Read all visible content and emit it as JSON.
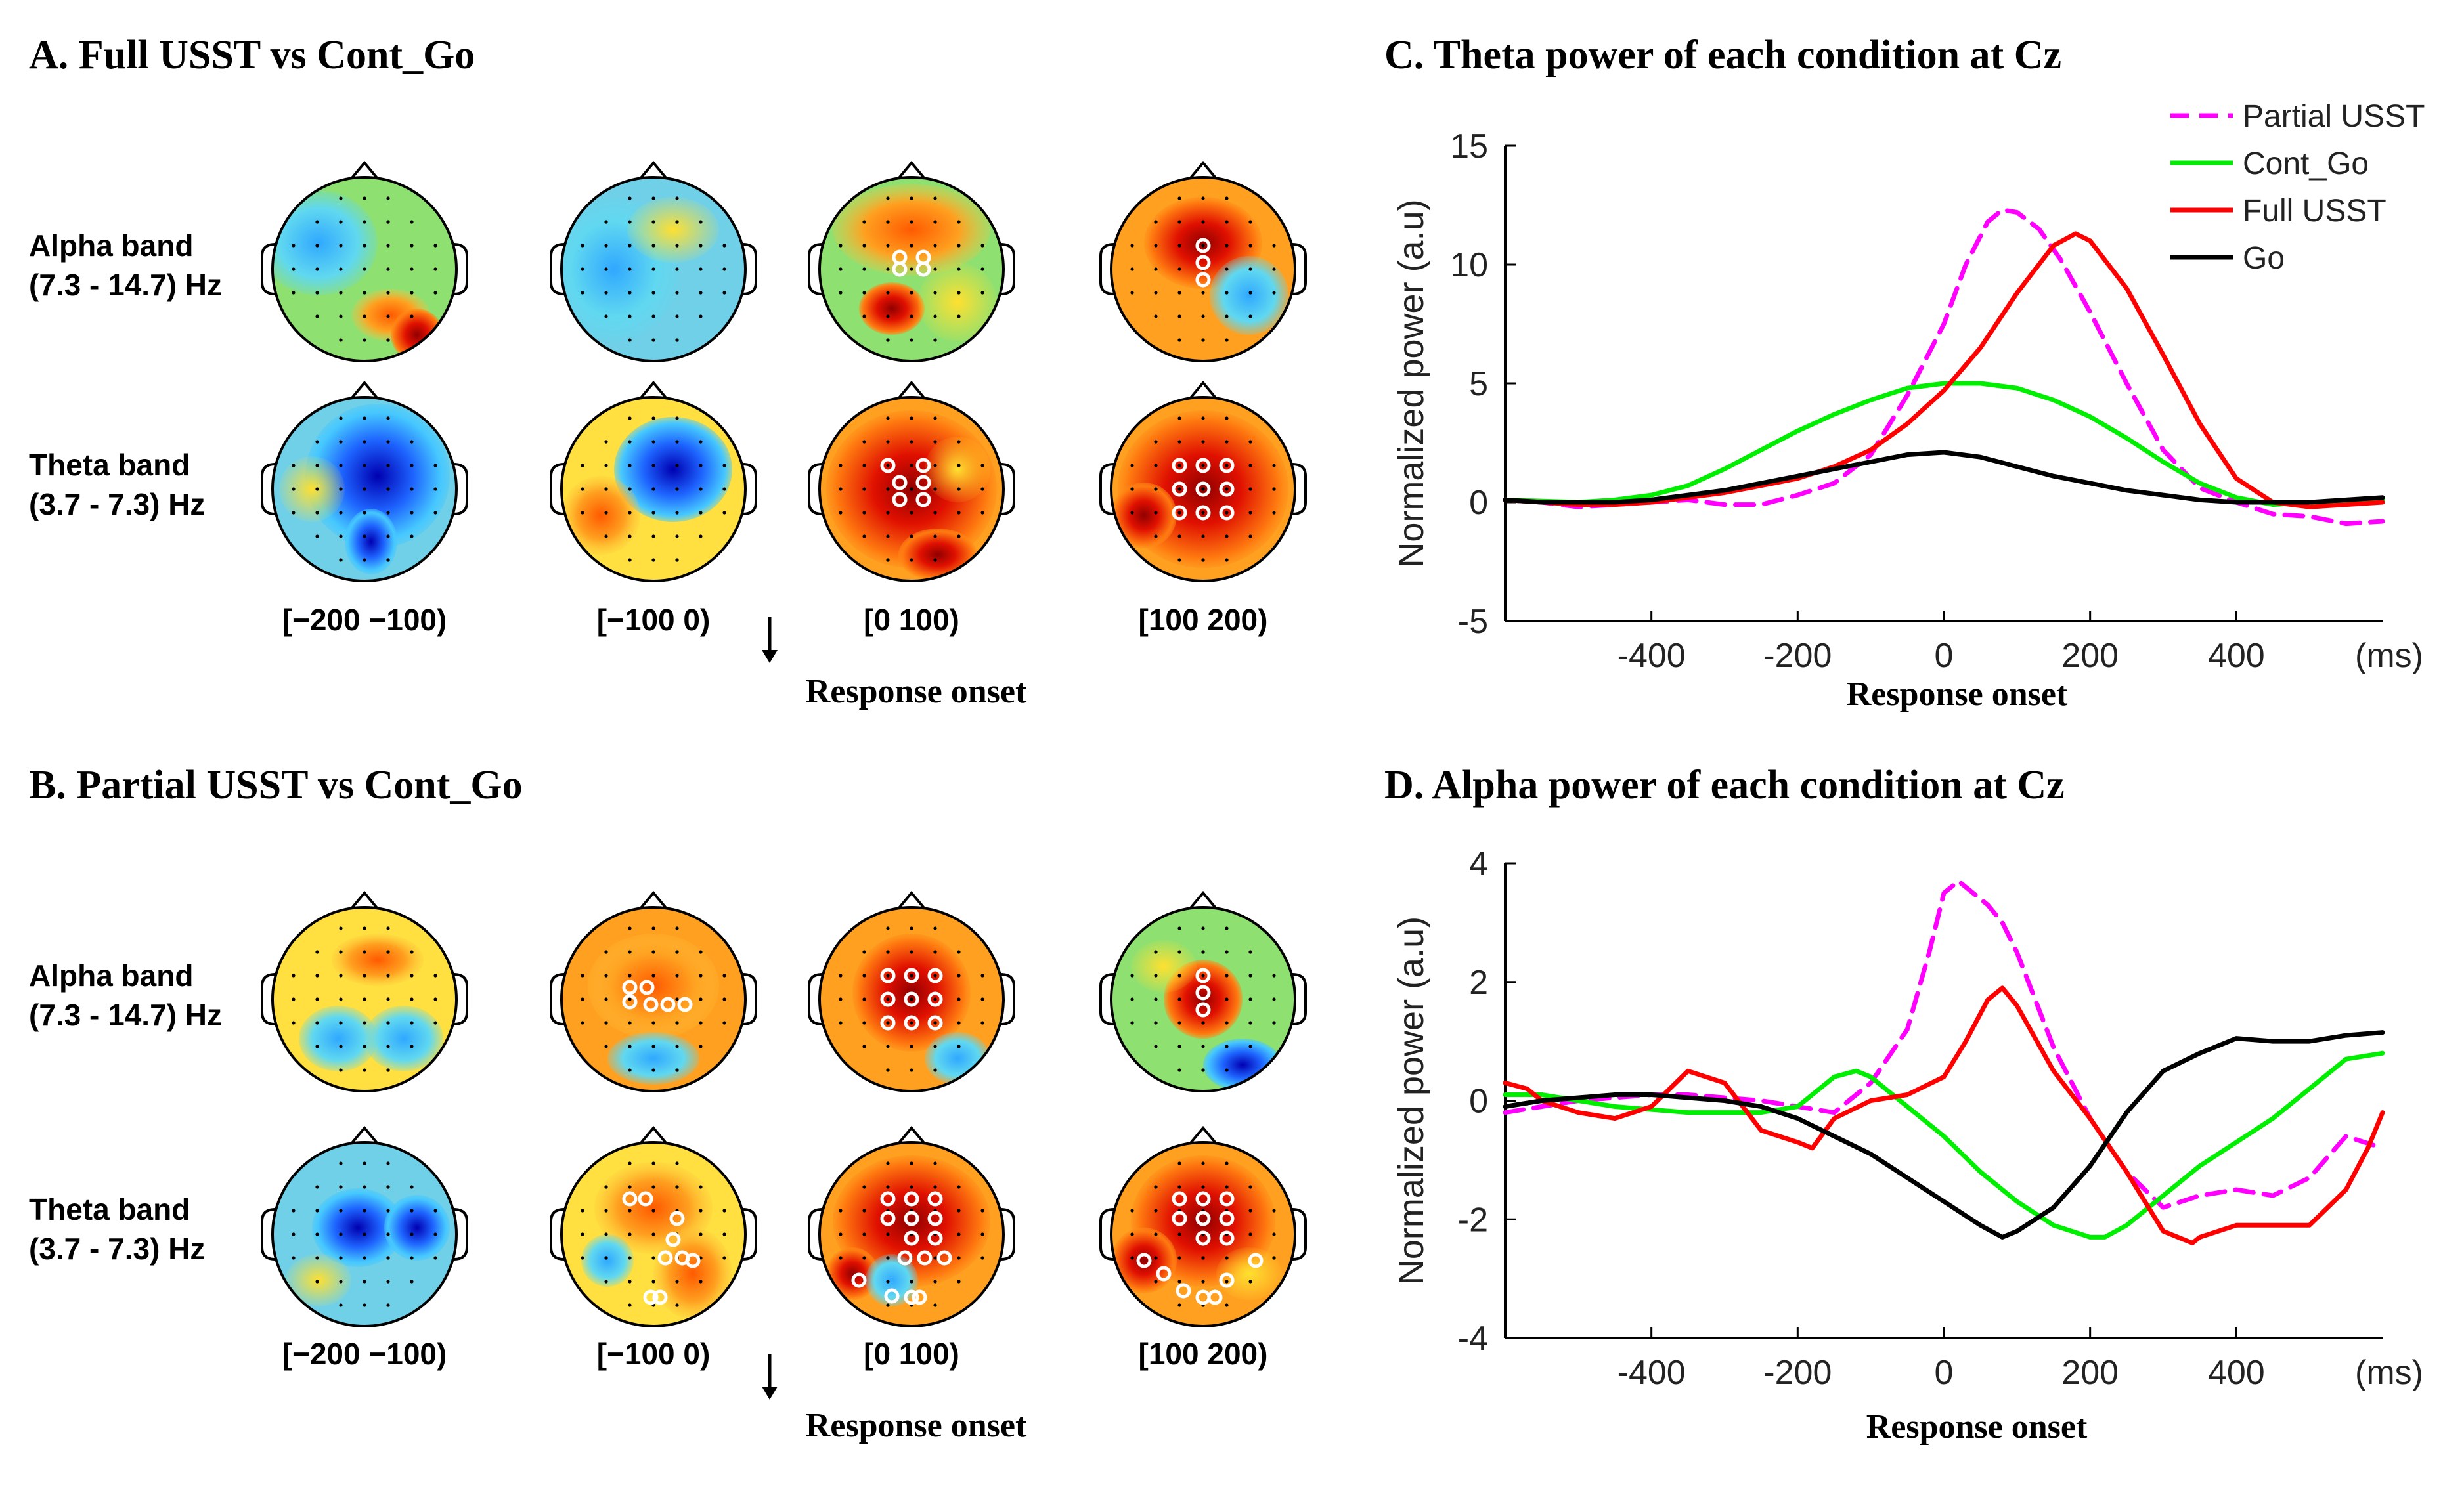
{
  "panels": {
    "A": {
      "title": "A. Full USST vs Cont_Go",
      "bands": [
        {
          "line1": "Alpha band",
          "line2": "(7.3 - 14.7) Hz"
        },
        {
          "line1": "Theta band",
          "line2": "(3.7 - 7.3) Hz"
        }
      ],
      "windows": [
        "[−200 −100)",
        "[−100 0)",
        "[0 100)",
        "[100 200)"
      ],
      "onset_label": "Response onset"
    },
    "B": {
      "title": "B. Partial USST vs Cont_Go",
      "bands": [
        {
          "line1": "Alpha band",
          "line2": "(7.3 - 14.7) Hz"
        },
        {
          "line1": "Theta band",
          "line2": "(3.7 - 7.3) Hz"
        }
      ],
      "windows": [
        "[−200 −100)",
        "[−100 0)",
        "[0 100)",
        "[100 200)"
      ],
      "onset_label": "Response onset"
    }
  },
  "colors": {
    "partial_usst": "#ff00ff",
    "cont_go": "#00ee00",
    "full_usst": "#ff0000",
    "go": "#000000",
    "map_low": "#0000aa",
    "map_high": "#800000"
  },
  "chart_data": [
    {
      "id": "C",
      "type": "line",
      "title": "C. Theta power of each condition at Cz",
      "ylabel": "Normalized power (a.u)",
      "xlabel": "Response onset",
      "x_unit_label": "(ms)",
      "xlim": [
        -600,
        600
      ],
      "ylim": [
        -5,
        15
      ],
      "xticks": [
        -400,
        -200,
        0,
        200,
        400
      ],
      "yticks": [
        -5,
        0,
        5,
        10,
        15
      ],
      "legend_position": "top-right",
      "series": [
        {
          "name": "Partial USST",
          "style": "dashed",
          "x": [
            -600,
            -550,
            -500,
            -450,
            -400,
            -350,
            -300,
            -250,
            -200,
            -150,
            -100,
            -50,
            0,
            30,
            60,
            80,
            100,
            130,
            160,
            200,
            250,
            300,
            350,
            400,
            450,
            500,
            550,
            600
          ],
          "y": [
            0.1,
            0,
            -0.2,
            -0.1,
            0,
            0.1,
            -0.1,
            -0.1,
            0.3,
            0.8,
            2,
            4.5,
            7.5,
            10,
            11.8,
            12.3,
            12.2,
            11.5,
            10.2,
            8,
            5,
            2.2,
            0.6,
            0,
            -0.5,
            -0.6,
            -0.9,
            -0.8
          ]
        },
        {
          "name": "Cont_Go",
          "style": "solid",
          "x": [
            -600,
            -500,
            -450,
            -400,
            -350,
            -300,
            -250,
            -200,
            -150,
            -100,
            -50,
            0,
            50,
            100,
            150,
            200,
            250,
            300,
            350,
            400,
            450,
            500,
            550,
            600
          ],
          "y": [
            0.1,
            0,
            0.1,
            0.3,
            0.7,
            1.4,
            2.2,
            3,
            3.7,
            4.3,
            4.8,
            5,
            5,
            4.8,
            4.3,
            3.6,
            2.7,
            1.7,
            0.8,
            0.2,
            -0.1,
            0,
            0,
            0.1
          ]
        },
        {
          "name": "Full USST",
          "style": "solid",
          "x": [
            -600,
            -550,
            -500,
            -450,
            -400,
            -350,
            -300,
            -250,
            -200,
            -150,
            -100,
            -50,
            0,
            50,
            100,
            150,
            180,
            200,
            250,
            300,
            350,
            400,
            450,
            500,
            550,
            600
          ],
          "y": [
            0.1,
            0,
            -0.1,
            -0.1,
            0,
            0.2,
            0.4,
            0.7,
            1,
            1.5,
            2.2,
            3.3,
            4.7,
            6.5,
            8.8,
            10.8,
            11.3,
            11,
            9,
            6.2,
            3.3,
            1,
            0,
            -0.2,
            -0.1,
            0
          ]
        },
        {
          "name": "Go",
          "style": "solid",
          "x": [
            -600,
            -550,
            -500,
            -450,
            -400,
            -350,
            -300,
            -250,
            -200,
            -150,
            -100,
            -50,
            0,
            50,
            100,
            150,
            200,
            250,
            300,
            350,
            400,
            450,
            500,
            550,
            600
          ],
          "y": [
            0.1,
            0,
            0,
            0,
            0.1,
            0.3,
            0.5,
            0.8,
            1.1,
            1.4,
            1.7,
            2,
            2.1,
            1.9,
            1.5,
            1.1,
            0.8,
            0.5,
            0.3,
            0.1,
            0,
            0,
            0,
            0.1,
            0.2
          ]
        }
      ]
    },
    {
      "id": "D",
      "type": "line",
      "title": "D. Alpha power of each condition at Cz",
      "ylabel": "Normalized power (a.u)",
      "xlabel": "Response onset",
      "x_unit_label": "(ms)",
      "xlim": [
        -600,
        600
      ],
      "ylim": [
        -4,
        4
      ],
      "xticks": [
        -400,
        -200,
        0,
        200,
        400
      ],
      "yticks": [
        -4,
        -2,
        0,
        2,
        4
      ],
      "series": [
        {
          "name": "Partial USST",
          "style": "dashed",
          "x": [
            -600,
            -550,
            -500,
            -450,
            -400,
            -350,
            -300,
            -250,
            -200,
            -150,
            -100,
            -50,
            -20,
            0,
            20,
            40,
            60,
            80,
            100,
            150,
            200,
            250,
            300,
            350,
            400,
            450,
            500,
            550,
            600
          ],
          "y": [
            -0.2,
            -0.1,
            0,
            0.05,
            0.1,
            0.1,
            0.05,
            0,
            -0.1,
            -0.2,
            0.3,
            1.2,
            2.5,
            3.5,
            3.7,
            3.5,
            3.3,
            3,
            2.5,
            0.9,
            -0.3,
            -1.2,
            -1.8,
            -1.6,
            -1.5,
            -1.6,
            -1.3,
            -0.6,
            -0.8
          ]
        },
        {
          "name": "Cont_Go",
          "style": "solid",
          "x": [
            -600,
            -550,
            -500,
            -450,
            -400,
            -350,
            -300,
            -250,
            -200,
            -150,
            -120,
            -100,
            -50,
            0,
            50,
            100,
            150,
            200,
            220,
            250,
            300,
            350,
            400,
            450,
            500,
            550,
            600
          ],
          "y": [
            0.1,
            0.1,
            0,
            -0.1,
            -0.15,
            -0.2,
            -0.2,
            -0.2,
            -0.1,
            0.4,
            0.5,
            0.4,
            -0.1,
            -0.6,
            -1.2,
            -1.7,
            -2.1,
            -2.3,
            -2.3,
            -2.1,
            -1.6,
            -1.1,
            -0.7,
            -0.3,
            0.2,
            0.7,
            0.8
          ]
        },
        {
          "name": "Full USST",
          "style": "solid",
          "x": [
            -600,
            -570,
            -550,
            -500,
            -450,
            -400,
            -350,
            -300,
            -250,
            -200,
            -180,
            -150,
            -100,
            -50,
            0,
            30,
            60,
            80,
            100,
            150,
            200,
            250,
            300,
            340,
            350,
            400,
            450,
            500,
            550,
            580,
            600
          ],
          "y": [
            0.3,
            0.2,
            0,
            -0.2,
            -0.3,
            -0.1,
            0.5,
            0.3,
            -0.5,
            -0.7,
            -0.8,
            -0.3,
            0,
            0.1,
            0.4,
            1,
            1.7,
            1.9,
            1.6,
            0.5,
            -0.3,
            -1.2,
            -2.2,
            -2.4,
            -2.3,
            -2.1,
            -2.1,
            -2.1,
            -1.5,
            -0.8,
            -0.2
          ]
        },
        {
          "name": "Go",
          "style": "solid",
          "x": [
            -600,
            -550,
            -500,
            -450,
            -400,
            -350,
            -300,
            -250,
            -200,
            -150,
            -100,
            -50,
            0,
            50,
            80,
            100,
            150,
            200,
            250,
            300,
            350,
            400,
            450,
            500,
            550,
            600
          ],
          "y": [
            -0.1,
            0,
            0.05,
            0.1,
            0.1,
            0.05,
            0,
            -0.1,
            -0.3,
            -0.6,
            -0.9,
            -1.3,
            -1.7,
            -2.1,
            -2.3,
            -2.2,
            -1.8,
            -1.1,
            -0.2,
            0.5,
            0.8,
            1.05,
            1,
            1,
            1.1,
            1.15
          ]
        }
      ]
    }
  ]
}
